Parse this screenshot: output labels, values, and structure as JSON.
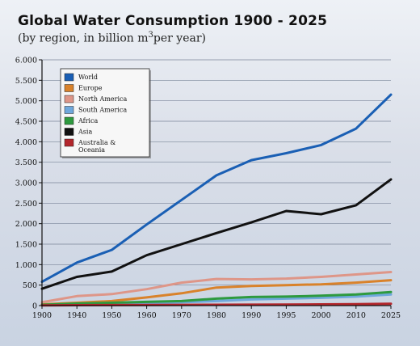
{
  "chart_data": {
    "type": "line",
    "title": "Global Water Consumption 1900 - 2025",
    "subtitle_prefix": "(by region, in billion m",
    "subtitle_sup": "3",
    "subtitle_suffix": "per year)",
    "x": [
      1900,
      1940,
      1950,
      1960,
      1970,
      1980,
      1990,
      1995,
      2000,
      2010,
      2025
    ],
    "x_tick_labels": [
      "1900",
      "1940",
      "1950",
      "1960",
      "1970",
      "1980",
      "1990",
      "1995",
      "2000",
      "2010",
      "2025"
    ],
    "y_tick_labels": [
      "0",
      "500",
      "1.000",
      "1.500",
      "2.000",
      "2.500",
      "3.000",
      "3.500",
      "4.000",
      "4.500",
      "5.000",
      "5.500",
      "6.000"
    ],
    "y_tick_values": [
      0,
      500,
      1000,
      1500,
      2000,
      2500,
      3000,
      3500,
      4000,
      4500,
      5000,
      5500,
      6000
    ],
    "ylim": [
      0,
      6000
    ],
    "grid": "horizontal",
    "legend_position": "top-left",
    "series": [
      {
        "name": "World",
        "color": "#1a5fb4",
        "values": [
          580,
          1050,
          1360,
          1980,
          2580,
          3180,
          3550,
          3720,
          3920,
          4320,
          5150
        ]
      },
      {
        "name": "Europe",
        "color": "#d9822b",
        "values": [
          30,
          70,
          110,
          200,
          300,
          440,
          480,
          500,
          520,
          560,
          620
        ]
      },
      {
        "name": "North America",
        "color": "#de9688",
        "values": [
          80,
          230,
          280,
          400,
          560,
          650,
          640,
          660,
          700,
          760,
          820
        ]
      },
      {
        "name": "South America",
        "color": "#6fa8dc",
        "values": [
          10,
          20,
          30,
          50,
          80,
          110,
          150,
          170,
          190,
          220,
          270
        ]
      },
      {
        "name": "Africa",
        "color": "#2e9a3f",
        "values": [
          20,
          50,
          70,
          90,
          110,
          170,
          210,
          220,
          240,
          270,
          330
        ]
      },
      {
        "name": "Asia",
        "color": "#111111",
        "values": [
          410,
          700,
          830,
          1230,
          1500,
          1770,
          2030,
          2310,
          2230,
          2450,
          3080
        ]
      },
      {
        "name": "Australia & Oceania",
        "color": "#b3262c",
        "values": [
          5,
          10,
          12,
          15,
          18,
          20,
          22,
          25,
          30,
          35,
          45
        ]
      }
    ]
  }
}
